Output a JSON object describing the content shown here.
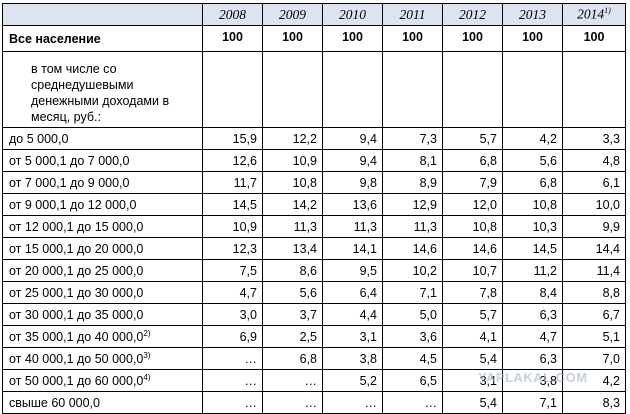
{
  "table": {
    "years": [
      "2008",
      "2009",
      "2010",
      "2011",
      "2012",
      "2013",
      "2014"
    ],
    "years_footnote": "1)",
    "total": {
      "label": "Все население",
      "values": [
        "100",
        "100",
        "100",
        "100",
        "100",
        "100",
        "100"
      ]
    },
    "subheading": "в том числе со среднедушевыми денежными доходами в месяц, руб.:",
    "rows": [
      {
        "label": "до 5 000,0",
        "note": "",
        "values": [
          "15,9",
          "12,2",
          "9,4",
          "7,3",
          "5,7",
          "4,2",
          "3,3"
        ]
      },
      {
        "label": "от 5 000,1 до 7 000,0",
        "note": "",
        "values": [
          "12,6",
          "10,9",
          "9,4",
          "8,1",
          "6,8",
          "5,6",
          "4,8"
        ]
      },
      {
        "label": "от 7 000,1 до 9 000,0",
        "note": "",
        "values": [
          "11,7",
          "10,8",
          "9,8",
          "8,9",
          "7,9",
          "6,8",
          "6,1"
        ]
      },
      {
        "label": "от 9 000,1 до 12 000,0",
        "note": "",
        "values": [
          "14,5",
          "14,2",
          "13,6",
          "12,9",
          "12,0",
          "10,8",
          "10,0"
        ]
      },
      {
        "label": "от 12 000,1 до 15 000,0",
        "note": "",
        "values": [
          "10,9",
          "11,3",
          "11,3",
          "11,3",
          "10,8",
          "10,3",
          "9,9"
        ]
      },
      {
        "label": "от 15 000,1 до 20 000,0",
        "note": "",
        "values": [
          "12,3",
          "13,4",
          "14,1",
          "14,6",
          "14,6",
          "14,5",
          "14,4"
        ]
      },
      {
        "label": "от 20 000,1 до 25 000,0",
        "note": "",
        "values": [
          "7,5",
          "8,6",
          "9,5",
          "10,2",
          "10,7",
          "11,2",
          "11,4"
        ]
      },
      {
        "label": "от 25 000,1 до 30 000,0",
        "note": "",
        "values": [
          "4,7",
          "5,6",
          "6,4",
          "7,1",
          "7,8",
          "8,4",
          "8,8"
        ]
      },
      {
        "label": "от 30 000,1 до 35 000,0",
        "note": "",
        "values": [
          "3,0",
          "3,7",
          "4,4",
          "5,0",
          "5,7",
          "6,3",
          "6,7"
        ]
      },
      {
        "label": "от 35 000,1 до 40 000,0",
        "note": "2)",
        "values": [
          "6,9",
          "2,5",
          "3,1",
          "3,6",
          "4,1",
          "4,7",
          "5,1"
        ]
      },
      {
        "label": "от 40 000,1 до 50 000,0",
        "note": "3)",
        "values": [
          "…",
          "6,8",
          "3,8",
          "4,5",
          "5,4",
          "6,3",
          "7,0"
        ]
      },
      {
        "label": "от 50 000,1 до 60 000,0",
        "note": "4)",
        "values": [
          "…",
          "…",
          "5,2",
          "6,5",
          "3,1",
          "3,8",
          "4,2"
        ]
      },
      {
        "label": "свыше 60 000,0",
        "note": "",
        "values": [
          "…",
          "…",
          "…",
          "…",
          "5,4",
          "7,1",
          "8,3"
        ]
      }
    ]
  },
  "watermark": "YAPLAKAL.COM"
}
